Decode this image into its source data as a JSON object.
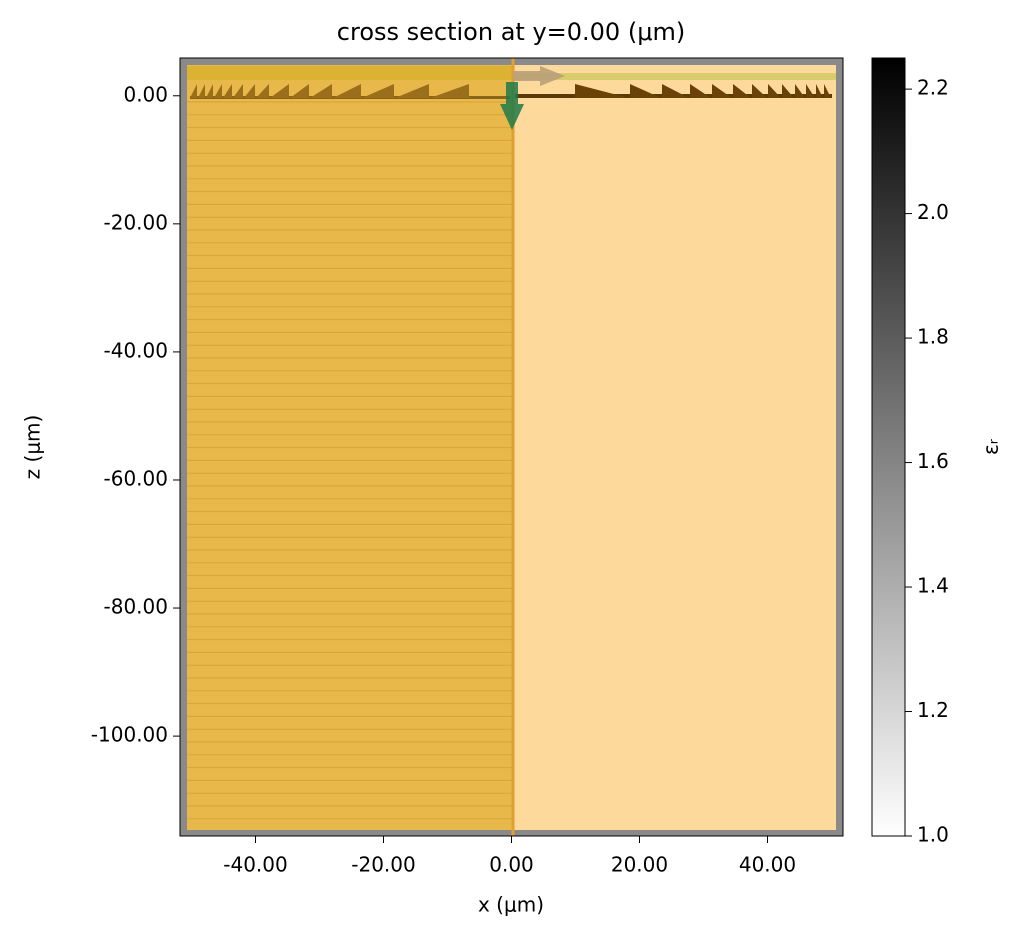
{
  "chart_data": {
    "type": "structure",
    "title": "cross section at y=0.00 (μm)",
    "x_label": "x (μm)",
    "y_label": "z (μm)",
    "xlim": [
      -51.8,
      51.8
    ],
    "ylim": [
      -115.6,
      5.9
    ],
    "xticks": [
      {
        "value": -40,
        "label": "-40.00"
      },
      {
        "value": -20,
        "label": "-20.00"
      },
      {
        "value": 0,
        "label": "0.00"
      },
      {
        "value": 20,
        "label": "20.00"
      },
      {
        "value": 40,
        "label": "40.00"
      }
    ],
    "yticks": [
      {
        "value": 0,
        "label": "0.00"
      },
      {
        "value": -20,
        "label": "-20.00"
      },
      {
        "value": -40,
        "label": "-40.00"
      },
      {
        "value": -60,
        "label": "-60.00"
      },
      {
        "value": -80,
        "label": "-80.00"
      },
      {
        "value": -100,
        "label": "-100.00"
      }
    ],
    "colorbar": {
      "label": "εᵣ",
      "lim": [
        1,
        2.25
      ],
      "ticks": [
        {
          "value": 1,
          "label": "1.0"
        },
        {
          "value": 1.2,
          "label": "1.2"
        },
        {
          "value": 1.4,
          "label": "1.4"
        },
        {
          "value": 1.6,
          "label": "1.6"
        },
        {
          "value": 1.8,
          "label": "1.8"
        },
        {
          "value": 2.0,
          "label": "2.0"
        },
        {
          "value": 2.2,
          "label": "2.2"
        }
      ],
      "colors": [
        "#ffffff",
        "#000000"
      ]
    }
  }
}
